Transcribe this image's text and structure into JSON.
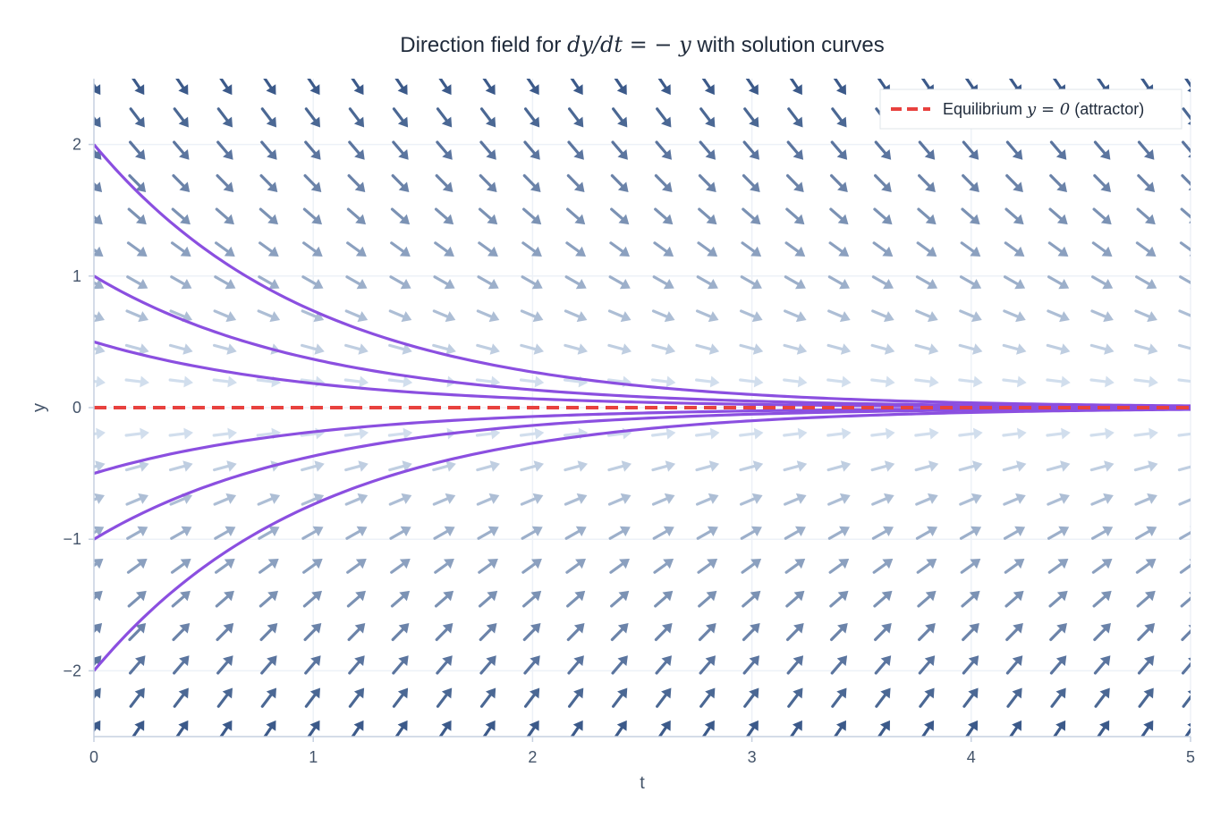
{
  "chart_data": {
    "type": "line",
    "title_parts": {
      "prefix": "Direction field for ",
      "equation": "dy/dt = − y",
      "suffix": " with solution curves"
    },
    "xlabel": "t",
    "ylabel": "y",
    "xlim": [
      0,
      5
    ],
    "ylim": [
      -2.5,
      2.5
    ],
    "x_ticks": [
      0,
      1,
      2,
      3,
      4,
      5
    ],
    "x_tick_labels": [
      "0",
      "1",
      "2",
      "3",
      "4",
      "5"
    ],
    "y_ticks": [
      -2,
      -1,
      0,
      1,
      2
    ],
    "y_tick_labels": [
      "−2",
      "−1",
      "0",
      "1",
      "2"
    ],
    "grid": true,
    "legend_position": "top-right",
    "equilibrium": {
      "y": 0,
      "style": "dashed",
      "color": "#e8413e",
      "legend_parts": {
        "prefix": "Equilibrium ",
        "equation": "y = 0",
        "suffix": " (attractor)"
      }
    },
    "direction_field": {
      "ode": "dy/dt = -y",
      "t_values": [
        0,
        0.2,
        0.4,
        0.6,
        0.8,
        1.0,
        1.2,
        1.4,
        1.6,
        1.8,
        2.0,
        2.2,
        2.4,
        2.6,
        2.8,
        3.0,
        3.2,
        3.4,
        3.6,
        3.8,
        4.0,
        4.2,
        4.4,
        4.6,
        4.8,
        5.0
      ],
      "y_values": [
        2.45,
        2.2,
        1.95,
        1.7,
        1.45,
        1.2,
        0.95,
        0.7,
        0.45,
        0.2,
        -0.2,
        -0.45,
        -0.7,
        -0.95,
        -1.2,
        -1.45,
        -1.7,
        -1.95,
        -2.2,
        -2.45
      ],
      "color_light": "#e3eef9",
      "color_dark": "#3c5a8a"
    },
    "solution_curves": {
      "color": "#8b4fe0",
      "formula": "y(t) = y0 * exp(-t)",
      "initial_values": [
        2,
        1,
        0.5,
        -0.5,
        -1,
        -2
      ]
    }
  }
}
